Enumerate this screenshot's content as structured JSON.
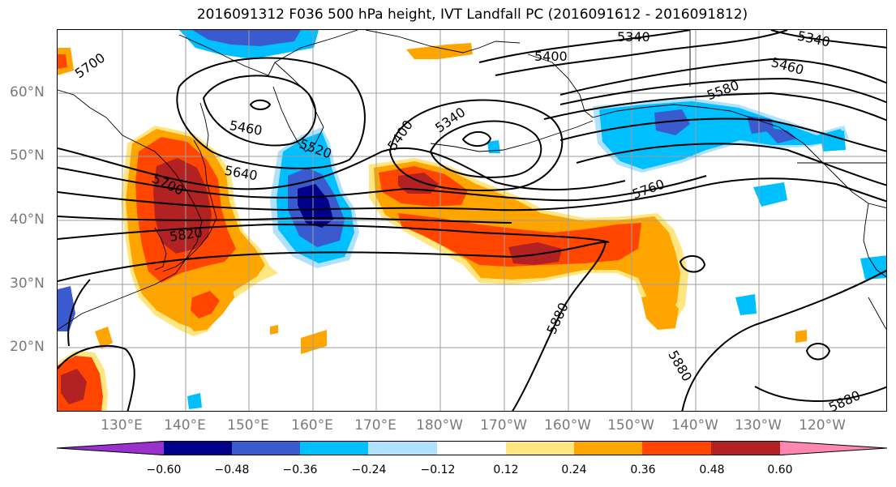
{
  "title": "2016091312 F036 500 hPa height, IVT Landfall PC (2016091612 - 2016091812)",
  "lat_labels": [
    "60°N",
    "50°N",
    "40°N",
    "30°N",
    "20°N"
  ],
  "lon_labels": [
    "130°E",
    "140°E",
    "150°E",
    "160°E",
    "170°E",
    "180°W",
    "170°W",
    "160°W",
    "150°W",
    "140°W",
    "130°W",
    "120°W"
  ],
  "contour_labels": {
    "c5700_nw": "5700",
    "c5460_w": "5460",
    "c5520": "5520",
    "c5640": "5640",
    "c5700_japan": "5700",
    "c5820": "5820",
    "c5400_center": "5400",
    "c5340_center": "5340",
    "c5400_top": "5400",
    "c5340_top": "5340",
    "c5340_ne": "5340",
    "c5460_e": "5460",
    "c5580": "5580",
    "c5760": "5760",
    "c5880_mid": "5880",
    "c5880_se": "5880",
    "c5880_sw": "5880"
  },
  "colorbar": {
    "ticks": [
      "−0.60",
      "−0.48",
      "−0.36",
      "−0.24",
      "−0.12",
      "0.12",
      "0.24",
      "0.36",
      "0.48",
      "0.60"
    ],
    "colors": [
      "#9932cc",
      "#00008b",
      "#3a5bd0",
      "#00bfff",
      "#b0e2ff",
      "#ffffff",
      "#ffe680",
      "#ffa500",
      "#ff4500",
      "#b22222",
      "#ff88b0"
    ]
  },
  "colors": {
    "c_pink": "#ff88b0",
    "c_darkred": "#b22222",
    "c_red": "#ff4500",
    "c_orange": "#ffa500",
    "c_yellow": "#ffe680",
    "c_lightblue": "#b0e2ff",
    "c_blue": "#00bfff",
    "c_royal": "#3a5bd0",
    "c_navy": "#00008b",
    "c_purple": "#9932cc",
    "gridline": "#9e9e9e",
    "contour": "#000000"
  }
}
